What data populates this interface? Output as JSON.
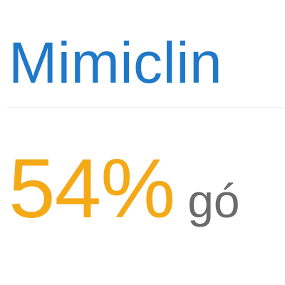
{
  "header": {
    "brand_partial": "Mimiclin"
  },
  "stat": {
    "percent": "54%",
    "suffix_partial": "gó"
  },
  "colors": {
    "brand_blue": "#1f78c8",
    "stat_orange": "#f4a916",
    "suffix_gray": "#6b6b6b",
    "background": "#ffffff"
  }
}
